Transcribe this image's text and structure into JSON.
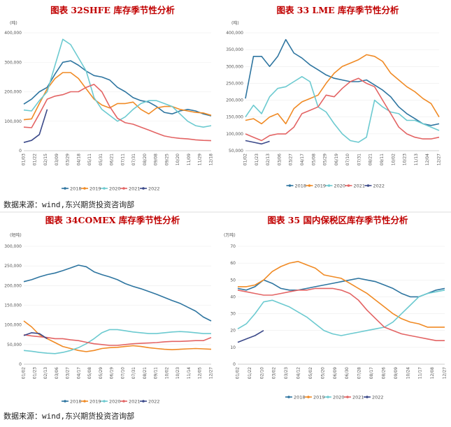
{
  "source_text": "数据来源：wind,东兴期货投资咨询部",
  "legend_names": [
    "2018",
    "2019",
    "2020",
    "2021",
    "2022"
  ],
  "colors": {
    "2018": "#2e75a0",
    "2019": "#f08a24",
    "2020": "#6ccad0",
    "2021": "#e36464",
    "2022": "#3c4a8a"
  },
  "chart_data": [
    {
      "type": "line",
      "title": "图表 32SHFE 库存季节性分析",
      "unit": "(吨)",
      "ylim": [
        0,
        400000
      ],
      "yticks": [
        "400,000",
        "300,000",
        "200,000",
        "100,000",
        "0"
      ],
      "xticks": [
        "01/03",
        "01/22",
        "02/15",
        "03/09",
        "03/29",
        "04/18",
        "05/11",
        "05/31",
        "06/21",
        "07/11",
        "07/31",
        "08/20",
        "09/08",
        "09/25",
        "10/20",
        "11/09",
        "11/29",
        "12/18"
      ],
      "series": [
        {
          "name": "2018",
          "values": [
            158000,
            175000,
            200000,
            215000,
            260000,
            300000,
            305000,
            290000,
            270000,
            255000,
            250000,
            240000,
            215000,
            200000,
            180000,
            170000,
            165000,
            150000,
            130000,
            125000,
            135000,
            140000,
            135000,
            125000,
            118000
          ]
        },
        {
          "name": "2019",
          "values": [
            105000,
            108000,
            160000,
            210000,
            245000,
            265000,
            265000,
            245000,
            210000,
            175000,
            155000,
            145000,
            160000,
            160000,
            165000,
            140000,
            125000,
            145000,
            150000,
            150000,
            140000,
            135000,
            130000,
            128000,
            120000
          ]
        },
        {
          "name": "2020",
          "values": [
            138000,
            135000,
            170000,
            200000,
            290000,
            378000,
            360000,
            315000,
            270000,
            180000,
            140000,
            120000,
            100000,
            115000,
            140000,
            160000,
            170000,
            170000,
            160000,
            150000,
            125000,
            100000,
            85000,
            80000,
            85000
          ]
        },
        {
          "name": "2021",
          "values": [
            80000,
            78000,
            125000,
            175000,
            185000,
            190000,
            200000,
            200000,
            215000,
            225000,
            200000,
            150000,
            110000,
            95000,
            90000,
            80000,
            70000,
            60000,
            50000,
            45000,
            42000,
            40000,
            37000,
            35000,
            34000
          ]
        },
        {
          "name": "2022",
          "values": [
            28000,
            35000,
            55000,
            140000
          ]
        }
      ]
    },
    {
      "type": "line",
      "title": "图表 33 LME 库存季节性分析",
      "unit": "(吨)",
      "ylim": [
        50000,
        400000
      ],
      "yticks": [
        "400,000",
        "350,000",
        "300,000",
        "250,000",
        "200,000",
        "150,000",
        "100,000",
        "50,000"
      ],
      "xticks": [
        "01/02",
        "01/23",
        "02/13",
        "03/06",
        "03/27",
        "04/17",
        "05/08",
        "05/29",
        "06/19",
        "07/10",
        "07/31",
        "08/21",
        "09/11",
        "10/02",
        "10/23",
        "11/13",
        "12/04",
        "12/27"
      ],
      "series": [
        {
          "name": "2018",
          "values": [
            205000,
            330000,
            330000,
            300000,
            330000,
            380000,
            340000,
            325000,
            305000,
            290000,
            275000,
            265000,
            260000,
            255000,
            255000,
            260000,
            245000,
            230000,
            210000,
            180000,
            160000,
            145000,
            130000,
            125000,
            130000
          ]
        },
        {
          "name": "2019",
          "values": [
            140000,
            145000,
            130000,
            150000,
            160000,
            130000,
            175000,
            195000,
            205000,
            215000,
            250000,
            280000,
            300000,
            310000,
            320000,
            335000,
            330000,
            315000,
            280000,
            260000,
            240000,
            225000,
            205000,
            190000,
            150000
          ]
        },
        {
          "name": "2020",
          "values": [
            150000,
            185000,
            160000,
            210000,
            235000,
            240000,
            255000,
            270000,
            255000,
            180000,
            165000,
            130000,
            100000,
            80000,
            75000,
            90000,
            200000,
            180000,
            165000,
            160000,
            140000,
            140000,
            130000,
            120000,
            110000
          ]
        },
        {
          "name": "2021",
          "values": [
            100000,
            90000,
            80000,
            95000,
            100000,
            100000,
            120000,
            160000,
            170000,
            180000,
            215000,
            210000,
            235000,
            255000,
            265000,
            250000,
            240000,
            200000,
            160000,
            120000,
            100000,
            90000,
            85000,
            85000,
            90000
          ]
        },
        {
          "name": "2022",
          "values": [
            80000,
            75000,
            70000,
            78000
          ]
        }
      ]
    },
    {
      "type": "line",
      "title": "图表 34COMEX 库存季节性分析",
      "unit": "(短吨)",
      "ylim": [
        0,
        300000
      ],
      "yticks": [
        "300,000",
        "250,000",
        "200,000",
        "150,000",
        "100,000",
        "50,000",
        "0"
      ],
      "xticks": [
        "01/02",
        "01/23",
        "02/13",
        "03/06",
        "03/27",
        "04/17",
        "05/08",
        "05/29",
        "06/19",
        "07/10",
        "07/31",
        "08/21",
        "09/11",
        "10/02",
        "10/23",
        "11/14",
        "12/05",
        "12/27"
      ],
      "series": [
        {
          "name": "2018",
          "values": [
            210000,
            215000,
            222000,
            228000,
            232000,
            238000,
            245000,
            252000,
            248000,
            235000,
            228000,
            222000,
            215000,
            205000,
            198000,
            192000,
            185000,
            178000,
            170000,
            162000,
            155000,
            145000,
            135000,
            120000,
            110000
          ]
        },
        {
          "name": "2019",
          "values": [
            110000,
            95000,
            75000,
            65000,
            55000,
            45000,
            40000,
            35000,
            32000,
            35000,
            40000,
            42000,
            43000,
            45000,
            47000,
            45000,
            42000,
            40000,
            38000,
            37000,
            38000,
            39000,
            40000,
            39000,
            38000
          ]
        },
        {
          "name": "2020",
          "values": [
            35000,
            33000,
            30000,
            28000,
            27000,
            30000,
            35000,
            42000,
            52000,
            65000,
            80000,
            88000,
            88000,
            85000,
            82000,
            80000,
            78000,
            78000,
            80000,
            82000,
            83000,
            82000,
            80000,
            78000,
            78000
          ]
        },
        {
          "name": "2021",
          "values": [
            75000,
            72000,
            70000,
            68000,
            65000,
            65000,
            62000,
            60000,
            56000,
            52000,
            50000,
            48000,
            48000,
            50000,
            52000,
            53000,
            54000,
            55000,
            57000,
            58000,
            58000,
            59000,
            60000,
            60000,
            68000
          ]
        },
        {
          "name": "2022",
          "values": [
            73000,
            80000,
            78000,
            65000
          ]
        }
      ]
    },
    {
      "type": "line",
      "title": "图表 35 国内保税区库存季节性分析",
      "unit": "(万吨)",
      "ylim": [
        0,
        70
      ],
      "yticks": [
        "70",
        "60",
        "50",
        "40",
        "30",
        "20",
        "10",
        "0"
      ],
      "xticks": [
        "01/02",
        "01/22",
        "02/10",
        "03/02",
        "03/23",
        "04/12",
        "05/02",
        "05/20",
        "06/09",
        "06/30",
        "07/28",
        "08/17",
        "08/26",
        "09/09",
        "10/24",
        "11/17",
        "12/08",
        "12/27"
      ],
      "series": [
        {
          "name": "2018",
          "values": [
            45,
            44,
            46,
            50,
            48,
            45,
            44,
            44,
            45,
            46,
            47,
            48,
            49,
            50,
            51,
            50,
            49,
            47,
            45,
            42,
            40,
            40,
            42,
            44,
            45
          ]
        },
        {
          "name": "2019",
          "values": [
            46,
            46,
            47,
            50,
            55,
            58,
            60,
            61,
            59,
            57,
            53,
            52,
            51,
            48,
            45,
            42,
            38,
            34,
            30,
            27,
            25,
            24,
            22,
            22,
            22
          ]
        },
        {
          "name": "2020",
          "values": [
            21,
            24,
            30,
            37,
            38,
            36,
            34,
            31,
            28,
            24,
            20,
            18,
            17,
            18,
            19,
            20,
            21,
            22,
            25,
            30,
            35,
            40,
            42,
            43,
            44
          ]
        },
        {
          "name": "2021",
          "values": [
            44,
            43,
            42,
            41,
            41,
            42,
            43,
            44,
            44,
            45,
            45,
            45,
            44,
            42,
            38,
            32,
            27,
            22,
            20,
            18,
            17,
            16,
            15,
            14,
            14
          ]
        },
        {
          "name": "2022",
          "values": [
            13,
            15,
            17,
            20
          ]
        }
      ]
    }
  ]
}
